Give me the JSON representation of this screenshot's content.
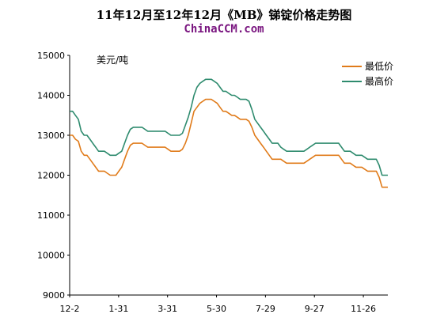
{
  "chart_data": {
    "type": "line",
    "title": "11年12月至12年12月《MB》锑锭价格走势图",
    "subtitle": "ChinaCCM.com",
    "unit_label": "美元/吨",
    "x_tick_labels": [
      "12-2",
      "1-31",
      "3-31",
      "5-30",
      "7-29",
      "9-27",
      "11-26"
    ],
    "ylim": [
      9000,
      15000
    ],
    "y_ticks": [
      9000,
      10000,
      11000,
      12000,
      13000,
      14000,
      15000
    ],
    "grid": false,
    "legend_position": "top-right",
    "series": [
      {
        "name": "最低价",
        "color": "#e07b1a",
        "values": [
          13000,
          13000,
          12900,
          12850,
          12600,
          12500,
          12500,
          12400,
          12300,
          12200,
          12100,
          12100,
          12100,
          12050,
          12000,
          12000,
          12000,
          12100,
          12200,
          12400,
          12600,
          12750,
          12800,
          12800,
          12800,
          12800,
          12750,
          12700,
          12700,
          12700,
          12700,
          12700,
          12700,
          12700,
          12650,
          12600,
          12600,
          12600,
          12600,
          12650,
          12800,
          13000,
          13300,
          13600,
          13700,
          13800,
          13850,
          13900,
          13900,
          13900,
          13850,
          13800,
          13700,
          13600,
          13600,
          13550,
          13500,
          13500,
          13450,
          13400,
          13400,
          13400,
          13350,
          13200,
          13000,
          12900,
          12800,
          12700,
          12600,
          12500,
          12400,
          12400,
          12400,
          12400,
          12350,
          12300,
          12300,
          12300,
          12300,
          12300,
          12300,
          12300,
          12350,
          12400,
          12450,
          12500,
          12500,
          12500,
          12500,
          12500,
          12500,
          12500,
          12500,
          12500,
          12400,
          12300,
          12300,
          12300,
          12250,
          12200,
          12200,
          12200,
          12150,
          12100,
          12100,
          12100,
          12100,
          11950,
          11700,
          11700,
          11700
        ]
      },
      {
        "name": "最高价",
        "color": "#2e8b6e",
        "values": [
          13600,
          13600,
          13500,
          13400,
          13100,
          13000,
          13000,
          12900,
          12800,
          12700,
          12600,
          12600,
          12600,
          12550,
          12500,
          12500,
          12500,
          12550,
          12600,
          12800,
          13000,
          13150,
          13200,
          13200,
          13200,
          13200,
          13150,
          13100,
          13100,
          13100,
          13100,
          13100,
          13100,
          13100,
          13050,
          13000,
          13000,
          13000,
          13000,
          13050,
          13250,
          13450,
          13700,
          14000,
          14200,
          14300,
          14350,
          14400,
          14400,
          14400,
          14350,
          14300,
          14200,
          14100,
          14100,
          14050,
          14000,
          14000,
          13950,
          13900,
          13900,
          13900,
          13850,
          13650,
          13400,
          13300,
          13200,
          13100,
          13000,
          12900,
          12800,
          12800,
          12800,
          12700,
          12650,
          12600,
          12600,
          12600,
          12600,
          12600,
          12600,
          12600,
          12650,
          12700,
          12750,
          12800,
          12800,
          12800,
          12800,
          12800,
          12800,
          12800,
          12800,
          12800,
          12700,
          12600,
          12600,
          12600,
          12550,
          12500,
          12500,
          12500,
          12450,
          12400,
          12400,
          12400,
          12400,
          12250,
          12000,
          12000,
          12000
        ]
      }
    ]
  }
}
